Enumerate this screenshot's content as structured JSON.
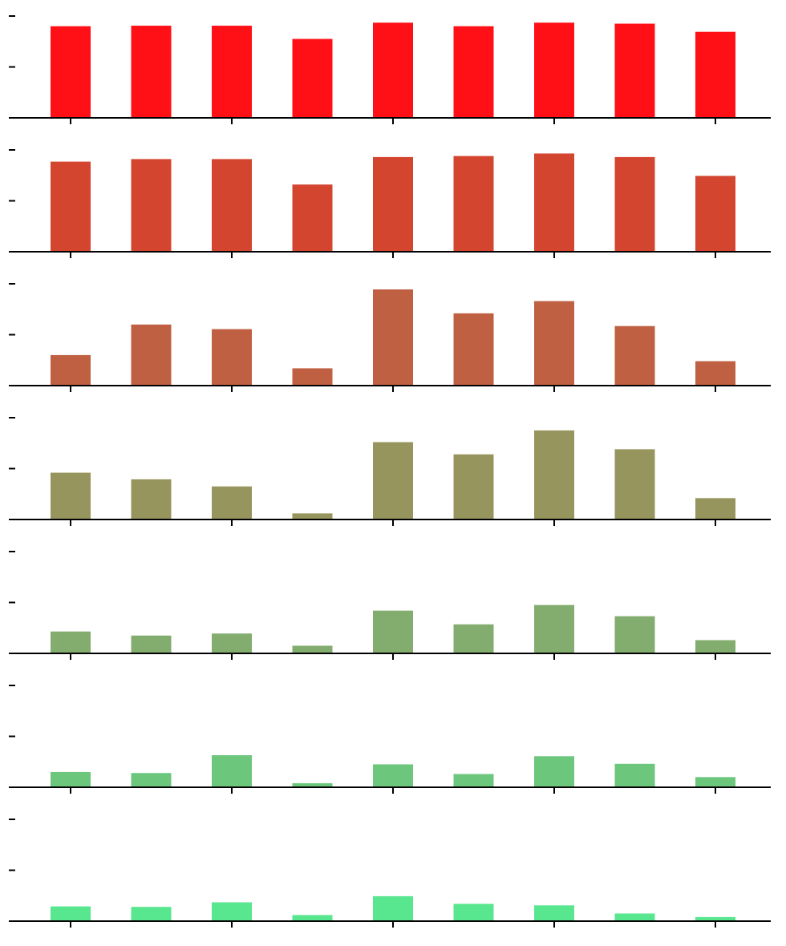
{
  "chart_data": [
    {
      "type": "bar",
      "color": "#ff1016",
      "ylim": [
        0,
        2
      ],
      "x": [
        0,
        1,
        2,
        3,
        4,
        5,
        6,
        7,
        8
      ],
      "values": [
        1.8,
        1.81,
        1.81,
        1.55,
        1.87,
        1.8,
        1.87,
        1.85,
        1.69
      ]
    },
    {
      "type": "bar",
      "color": "#d44530",
      "ylim": [
        0,
        2
      ],
      "x": [
        0,
        1,
        2,
        3,
        4,
        5,
        6,
        7,
        8
      ],
      "values": [
        1.77,
        1.82,
        1.82,
        1.32,
        1.86,
        1.88,
        1.93,
        1.86,
        1.49
      ]
    },
    {
      "type": "bar",
      "color": "#c06042",
      "ylim": [
        0,
        2
      ],
      "x": [
        0,
        1,
        2,
        3,
        4,
        5,
        6,
        7,
        8
      ],
      "values": [
        0.6,
        1.2,
        1.11,
        0.34,
        1.89,
        1.42,
        1.66,
        1.17,
        0.48
      ]
    },
    {
      "type": "bar",
      "color": "#97955e",
      "ylim": [
        0,
        2
      ],
      "x": [
        0,
        1,
        2,
        3,
        4,
        5,
        6,
        7,
        8
      ],
      "values": [
        0.92,
        0.79,
        0.65,
        0.12,
        1.52,
        1.28,
        1.75,
        1.38,
        0.42
      ]
    },
    {
      "type": "bar",
      "color": "#83ad6e",
      "ylim": [
        0,
        2
      ],
      "x": [
        0,
        1,
        2,
        3,
        4,
        5,
        6,
        7,
        8
      ],
      "values": [
        0.43,
        0.35,
        0.39,
        0.15,
        0.84,
        0.57,
        0.95,
        0.73,
        0.26
      ]
    },
    {
      "type": "bar",
      "color": "#6cc77d",
      "ylim": [
        0,
        2
      ],
      "x": [
        0,
        1,
        2,
        3,
        4,
        5,
        6,
        7,
        8
      ],
      "values": [
        0.3,
        0.28,
        0.63,
        0.08,
        0.45,
        0.26,
        0.61,
        0.46,
        0.2
      ]
    },
    {
      "type": "bar",
      "color": "#58e68f",
      "ylim": [
        0,
        2
      ],
      "x": [
        0,
        1,
        2,
        3,
        4,
        5,
        6,
        7,
        8
      ],
      "values": [
        0.29,
        0.28,
        0.37,
        0.12,
        0.49,
        0.34,
        0.31,
        0.15,
        0.08
      ]
    }
  ]
}
